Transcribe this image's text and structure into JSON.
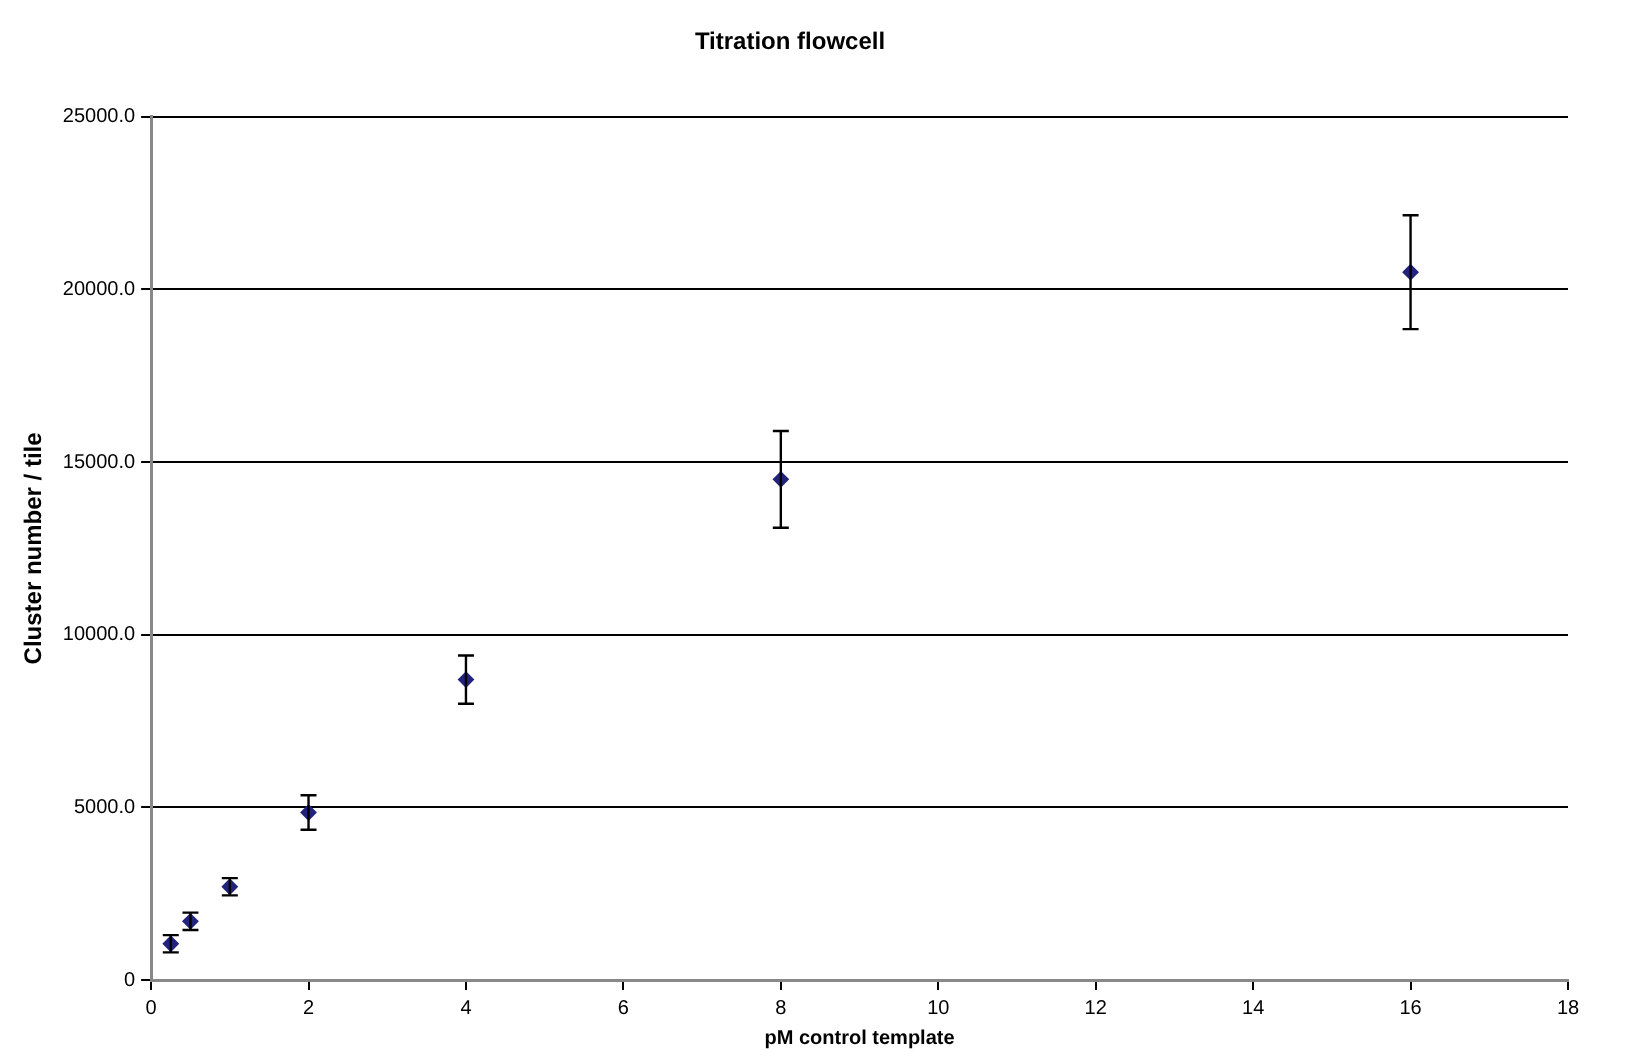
{
  "chart_data": {
    "type": "scatter",
    "title": "Titration flowcell",
    "xlabel": "pM control template",
    "ylabel": "Cluster number / tile",
    "x": [
      0.25,
      0.5,
      1,
      2,
      4,
      8,
      16
    ],
    "series": [
      {
        "color": "#22237a",
        "values": [
          1050,
          1700,
          2700,
          4850,
          8700,
          14500,
          20500
        ],
        "errors": [
          250,
          250,
          250,
          500,
          700,
          1400,
          1650
        ]
      }
    ],
    "xlim": [
      0,
      18
    ],
    "xticks": [
      0,
      2,
      4,
      6,
      8,
      10,
      12,
      14,
      16,
      18
    ],
    "ylim": [
      0,
      25000
    ],
    "yticks": [
      0,
      {
        "value": 5000,
        "label": "5000.0"
      },
      {
        "value": 10000,
        "label": "10000.0"
      },
      {
        "value": 15000,
        "label": "15000.0"
      },
      {
        "value": 20000,
        "label": "20000.0"
      },
      {
        "value": 25000,
        "label": "25000.0"
      }
    ],
    "grid": "y",
    "marker": "diamond",
    "legend": false
  }
}
